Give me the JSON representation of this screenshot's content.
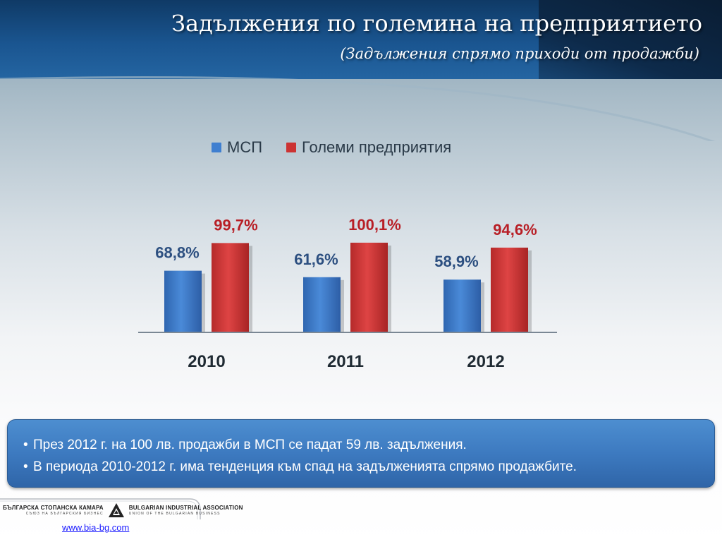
{
  "header": {
    "title": "Задължения по големина на предприятието",
    "subtitle": "(Задължения спрямо приходи от продажби)"
  },
  "colors": {
    "header_blue": "#1a5590",
    "series_msp": "#3f7fd0",
    "series_large": "#cc3333",
    "label_msp": "#2c4f80",
    "label_large": "#b81f26",
    "note_bg": "#3d7ac0"
  },
  "chart_data": {
    "type": "bar",
    "categories": [
      "2010",
      "2011",
      "2012"
    ],
    "series": [
      {
        "name": "МСП",
        "values": [
          68.8,
          61.6,
          58.9
        ],
        "labels": [
          "68,8%",
          "61,6%",
          "58,9%"
        ]
      },
      {
        "name": "Големи предприятия",
        "values": [
          99.7,
          100.1,
          94.6
        ],
        "labels": [
          "99,7%",
          "100,1%",
          "94,6%"
        ]
      }
    ],
    "title": "",
    "xlabel": "",
    "ylabel": "",
    "ylim": [
      0,
      100
    ],
    "legend_position": "top",
    "grid": false
  },
  "notes": [
    "През 2012 г. на 100 лв. продажби в МСП се падат 59 лв. задължения.",
    "В периода 2010-2012 г. има тенденция към спад на задълженията спрямо продажбите."
  ],
  "footer": {
    "logo_left_main": "БЪЛГАРСКА СТОПАНСКА КАМАРА",
    "logo_left_sub": "СЪЮЗ НА БЪЛГАРСКИЯ БИЗНЕС",
    "logo_right_main": "BULGARIAN INDUSTRIAL ASSOCIATION",
    "logo_right_sub": "UNION OF THE BULGARIAN BUSINESS",
    "link": "www.bia-bg.com",
    "logo_icon": "bia-triangle-logo-icon"
  }
}
